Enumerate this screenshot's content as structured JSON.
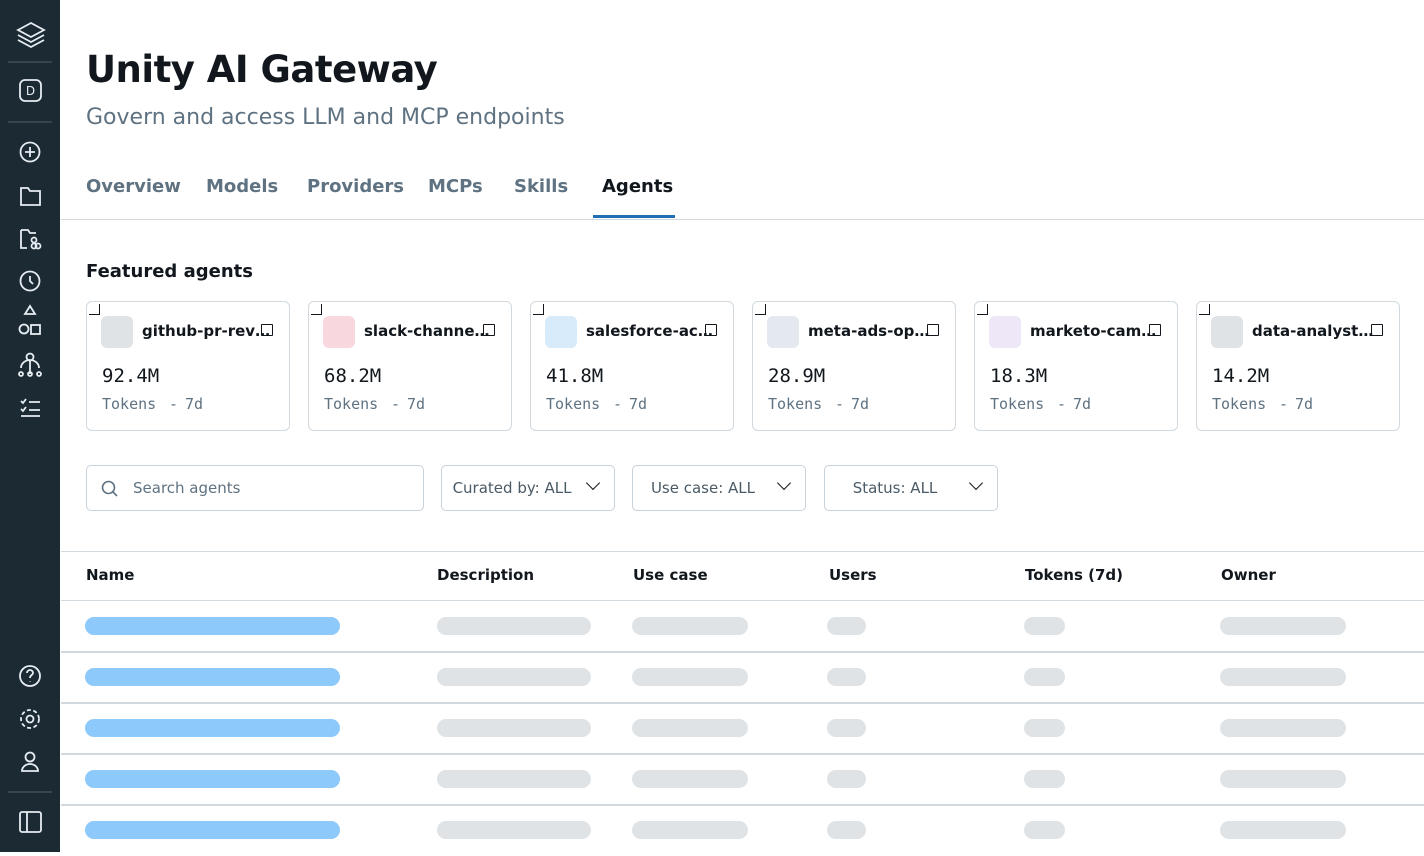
{
  "sidebar": {
    "workspace": "D"
  },
  "header": {
    "title": "Unity AI Gateway",
    "subtitle": "Govern and access LLM and MCP endpoints"
  },
  "tabs": {
    "items": [
      "Overview",
      "Models",
      "Providers",
      "MCPs",
      "Skills",
      "Agents"
    ],
    "active": 5
  },
  "featured": {
    "heading": "Featured agents",
    "cards": [
      {
        "name": "github-pr-rev…",
        "tokens": "92.4M",
        "unit": "Tokens",
        "sep": "-",
        "period": "7d",
        "color": "#dfe3e6"
      },
      {
        "name": "slack-channe…",
        "tokens": "68.2M",
        "unit": "Tokens",
        "sep": "-",
        "period": "7d",
        "color": "#f8d7de"
      },
      {
        "name": "salesforce-ac…",
        "tokens": "41.8M",
        "unit": "Tokens",
        "sep": "-",
        "period": "7d",
        "color": "#d8ebfb"
      },
      {
        "name": "meta-ads-op…",
        "tokens": "28.9M",
        "unit": "Tokens",
        "sep": "-",
        "period": "7d",
        "color": "#e4e9ef"
      },
      {
        "name": "marketo-cam…",
        "tokens": "18.3M",
        "unit": "Tokens",
        "sep": "-",
        "period": "7d",
        "color": "#ede7f7"
      },
      {
        "name": "data-analyst…",
        "tokens": "14.2M",
        "unit": "Tokens",
        "sep": "-",
        "period": "7d",
        "color": "#dfe3e6"
      }
    ]
  },
  "filters": {
    "search": "Search agents",
    "dropdowns": [
      "Curated by: ALL",
      "Use case: ALL",
      "Status: ALL"
    ]
  },
  "table": {
    "columns": [
      "Name",
      "Description",
      "Use case",
      "Users",
      "Tokens (7d)",
      "Owner"
    ]
  }
}
